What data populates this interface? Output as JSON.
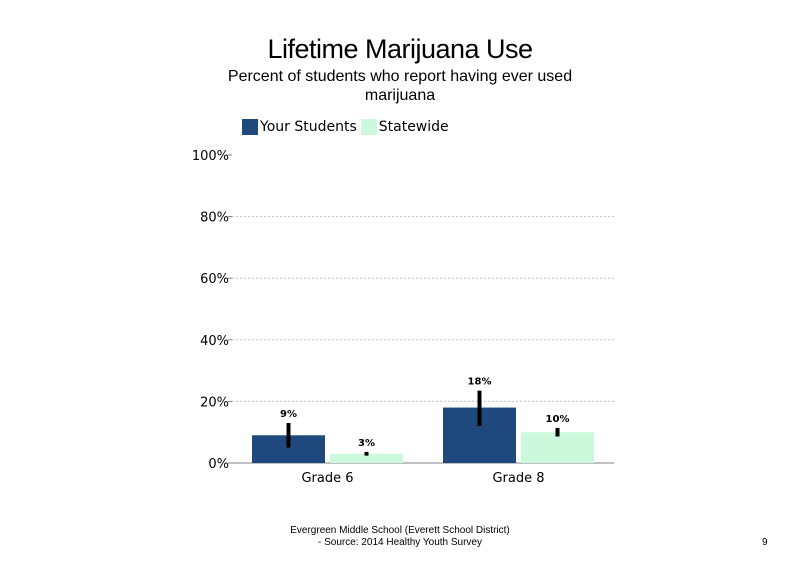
{
  "title": "Lifetime Marijuana Use",
  "subtitle": "Percent of students  who report having ever used marijuana",
  "footer": {
    "line1": "Evergreen Middle School (Everett School District)",
    "line2": "- Source: 2014 Healthy  Youth Survey"
  },
  "page_number": "9",
  "colors": {
    "your_students": "#1f497d",
    "statewide": "#ccf8dc",
    "error_bar": "#000000",
    "grid": "#bfbfbf"
  },
  "chart_data": {
    "type": "bar",
    "title": "Lifetime Marijuana Use",
    "subtitle": "Percent of students  who report having ever used marijuana",
    "categories": [
      "Grade 6",
      "Grade 8"
    ],
    "series": [
      {
        "name": "Your Students",
        "values": [
          9,
          18
        ],
        "labels": [
          "9%",
          "18%"
        ],
        "error_low": [
          5,
          12
        ],
        "error_high": [
          13,
          23.5
        ]
      },
      {
        "name": "Statewide",
        "values": [
          3,
          10
        ],
        "labels": [
          "3%",
          "10%"
        ],
        "error_low": [
          2.4,
          8.6
        ],
        "error_high": [
          3.6,
          11.4
        ]
      }
    ],
    "yticks": [
      "0%",
      "20%",
      "40%",
      "60%",
      "80%",
      "100%"
    ],
    "ylim": [
      0,
      100
    ],
    "grid": true,
    "legend": "top-left"
  }
}
